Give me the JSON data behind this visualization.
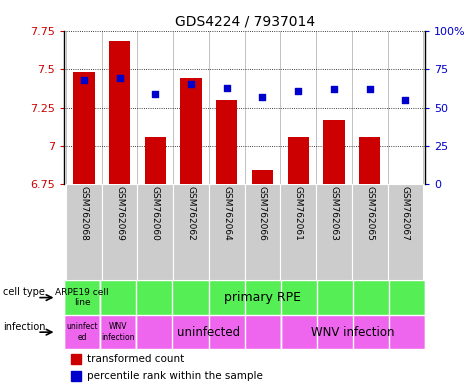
{
  "title": "GDS4224 / 7937014",
  "samples": [
    "GSM762068",
    "GSM762069",
    "GSM762060",
    "GSM762062",
    "GSM762064",
    "GSM762066",
    "GSM762061",
    "GSM762063",
    "GSM762065",
    "GSM762067"
  ],
  "transformed_count": [
    7.48,
    7.68,
    7.06,
    7.44,
    7.3,
    6.84,
    7.06,
    7.17,
    7.06,
    6.75
  ],
  "percentile_rank": [
    68,
    69,
    59,
    65,
    63,
    57,
    61,
    62,
    62,
    55
  ],
  "ylim_left": [
    6.75,
    7.75
  ],
  "ylim_right": [
    0,
    100
  ],
  "yticks_left": [
    6.75,
    7.0,
    7.25,
    7.5,
    7.75
  ],
  "yticks_right": [
    0,
    25,
    50,
    75,
    100
  ],
  "bar_color": "#cc0000",
  "dot_color": "#0000cc",
  "tick_color_left": "#cc0000",
  "tick_color_right": "#0000cc",
  "cell_type_green": "#55ee55",
  "infection_pink": "#ee66ee",
  "sample_bg": "#cccccc",
  "legend_red": "#cc0000",
  "legend_blue": "#0000cc"
}
